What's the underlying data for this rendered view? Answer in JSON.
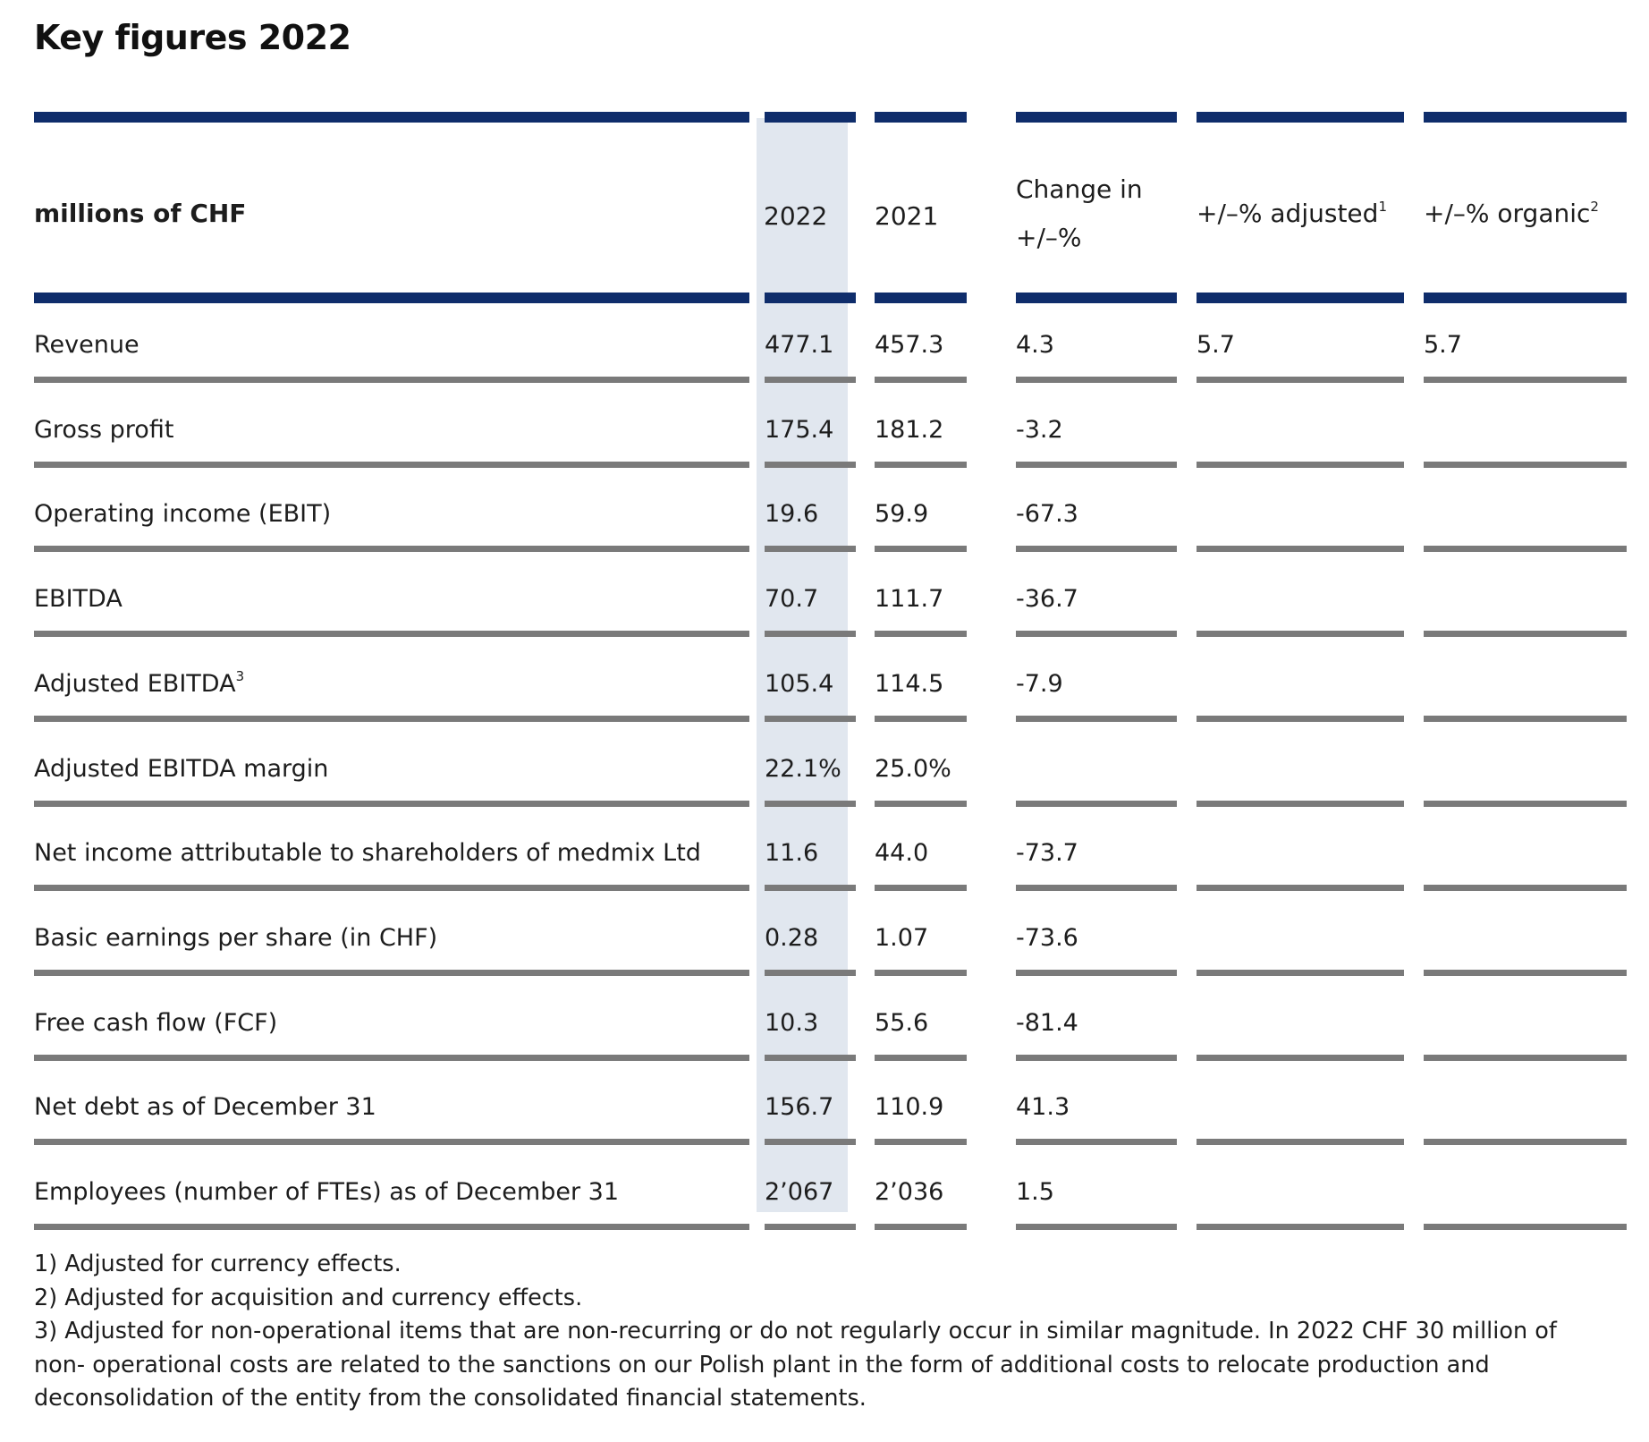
{
  "title": "Key figures 2022",
  "header": {
    "label": "millions of CHF",
    "col_2022": "2022",
    "col_2021": "2021",
    "col_change_line1": "Change in",
    "col_change_line2": "+/–%",
    "col_adjusted": "+/–% adjusted",
    "col_adjusted_note": "1",
    "col_organic": "+/–% organic",
    "col_organic_note": "2"
  },
  "rows": [
    {
      "label": "Revenue",
      "note": "",
      "v2022": "477.1",
      "v2021": "457.3",
      "change": "4.3",
      "adjusted": "5.7",
      "organic": "5.7"
    },
    {
      "label": "Gross profit",
      "note": "",
      "v2022": "175.4",
      "v2021": "181.2",
      "change": "-3.2",
      "adjusted": "",
      "organic": ""
    },
    {
      "label": "Operating income (EBIT)",
      "note": "",
      "v2022": "19.6",
      "v2021": "59.9",
      "change": "-67.3",
      "adjusted": "",
      "organic": ""
    },
    {
      "label": "EBITDA",
      "note": "",
      "v2022": "70.7",
      "v2021": "111.7",
      "change": "-36.7",
      "adjusted": "",
      "organic": ""
    },
    {
      "label": "Adjusted EBITDA",
      "note": "3",
      "v2022": "105.4",
      "v2021": "114.5",
      "change": "-7.9",
      "adjusted": "",
      "organic": ""
    },
    {
      "label": "Adjusted EBITDA margin",
      "note": "",
      "v2022": "22.1%",
      "v2021": "25.0%",
      "change": "",
      "adjusted": "",
      "organic": ""
    },
    {
      "label": "Net income attributable to shareholders of medmix Ltd",
      "note": "",
      "v2022": "11.6",
      "v2021": "44.0",
      "change": "-73.7",
      "adjusted": "",
      "organic": ""
    },
    {
      "label": "Basic earnings per share (in CHF)",
      "note": "",
      "v2022": "0.28",
      "v2021": "1.07",
      "change": "-73.6",
      "adjusted": "",
      "organic": ""
    },
    {
      "label": "Free cash flow (FCF)",
      "note": "",
      "v2022": "10.3",
      "v2021": "55.6",
      "change": "-81.4",
      "adjusted": "",
      "organic": ""
    },
    {
      "label": "Net debt as of December 31",
      "note": "",
      "v2022": "156.7",
      "v2021": "110.9",
      "change": "41.3",
      "adjusted": "",
      "organic": ""
    },
    {
      "label": "Employees (number of FTEs) as of December 31",
      "note": "",
      "v2022": "2’067",
      "v2021": "2’036",
      "change": "1.5",
      "adjusted": "",
      "organic": ""
    }
  ],
  "footnotes": [
    "1) Adjusted for currency effects.",
    "2) Adjusted for acquisition and currency effects.",
    "3) Adjusted for non-operational items that are non-recurring or do not regularly occur in similar magnitude. In 2022 CHF 30 million of non- operational costs are related to the sanctions on our Polish plant in the form of additional costs to relocate production and deconsolidation of the entity from the consolidated financial statements."
  ],
  "colors": {
    "rule_navy": "#0f2d6b",
    "rule_grey": "#7a7a7a",
    "highlight_column": "#e1e7ef"
  }
}
